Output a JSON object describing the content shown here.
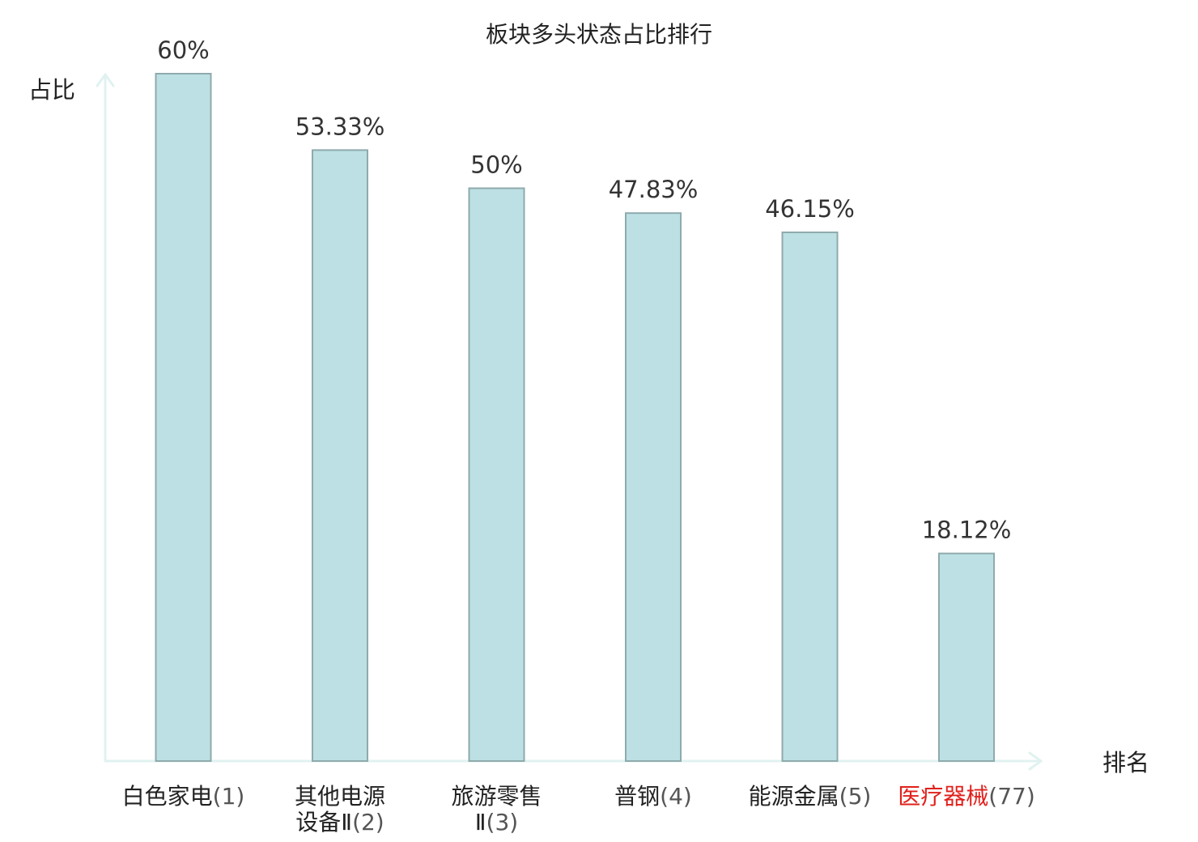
{
  "chart_data": {
    "type": "bar",
    "title": "板块多头状态占比排行",
    "ylabel": "占比",
    "xlabel": "排名",
    "ylim": [
      0,
      60
    ],
    "grid": false,
    "categories": [
      {
        "name_lines": [
          "白色家电"
        ],
        "rank": "(1)",
        "rank_line": 0,
        "value": 60,
        "label": "60%"
      },
      {
        "name_lines": [
          "其他电源",
          "设备Ⅱ"
        ],
        "rank": "(2)",
        "rank_line": 1,
        "value": 53.33,
        "label": "53.33%"
      },
      {
        "name_lines": [
          "旅游零售",
          "Ⅱ"
        ],
        "rank": "(3)",
        "rank_line": 1,
        "value": 50,
        "label": "50%"
      },
      {
        "name_lines": [
          "普钢"
        ],
        "rank": "(4)",
        "rank_line": 0,
        "value": 47.83,
        "label": "47.83%"
      },
      {
        "name_lines": [
          "能源金属"
        ],
        "rank": "(5)",
        "rank_line": 0,
        "value": 46.15,
        "label": "46.15%"
      },
      {
        "name_lines": [
          "医疗器械"
        ],
        "rank": "(77)",
        "rank_line": 0,
        "value": 18.12,
        "label": "18.12%",
        "highlight": true
      }
    ],
    "colors": {
      "bar_fill": "#bce0e3",
      "bar_stroke": "#8faaad",
      "axis": "#e0f2f0",
      "highlight": "#e0201b"
    }
  }
}
